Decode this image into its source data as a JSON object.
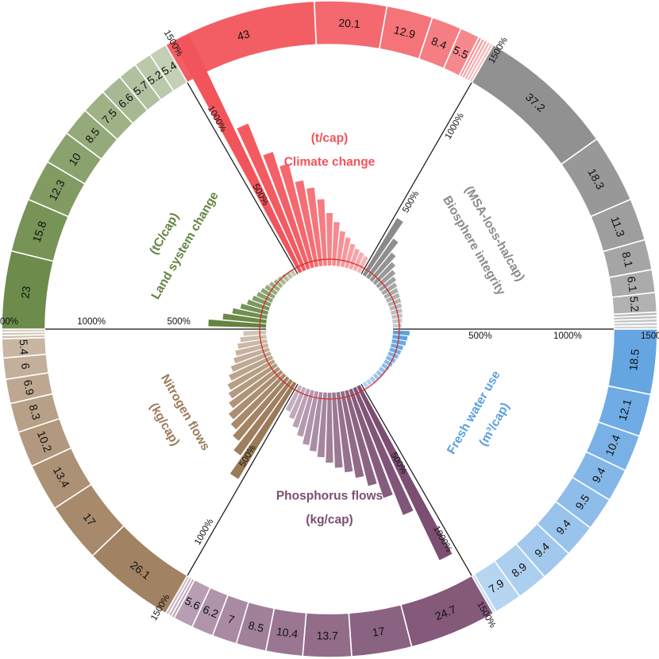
{
  "chart_data": {
    "type": "radial-bar",
    "tick_labels": [
      "500%",
      "1000%",
      "1500%"
    ],
    "tick_values": [
      500,
      1000,
      1500
    ],
    "categories": [
      {
        "key": "climate",
        "title_lines": [
          "Climate change",
          "(t/cap)"
        ],
        "color": "#f2545b",
        "center_angle": 0,
        "outer_values": [
          43,
          20.1,
          12.9,
          8.4,
          5.5
        ],
        "outer_unlabeled_count": 5,
        "bars_percent": [
          1500,
          900,
          700,
          610,
          500,
          450,
          380,
          300,
          250,
          200,
          170,
          140,
          120,
          110,
          100
        ]
      },
      {
        "key": "biosphere",
        "title_lines": [
          "Biosphere integrity",
          "(MSA-loss-ha/cap)"
        ],
        "color": "#8a8a8a",
        "center_angle": 60,
        "outer_values": [
          37.2,
          18.3,
          11.3,
          8.1,
          6.1,
          5.2
        ],
        "outer_unlabeled_count": 5,
        "bars_percent": [
          380,
          270,
          200,
          160,
          130,
          110,
          95,
          85,
          80,
          75,
          70,
          65,
          60,
          55,
          50
        ]
      },
      {
        "key": "water",
        "title_lines": [
          "Fresh water use",
          "(m³/cap)"
        ],
        "color": "#5b9fe0",
        "center_angle": 120,
        "outer_values": [
          18.5,
          12.1,
          10.4,
          9.4,
          9.5,
          9.4,
          9.4,
          8.9,
          7.9
        ],
        "outer_unlabeled_count": 1,
        "bars_percent": [
          95,
          85,
          80,
          70,
          65,
          60,
          55,
          50,
          45,
          40,
          40,
          35,
          35,
          30,
          30
        ]
      },
      {
        "key": "phosphorus",
        "title_lines": [
          "Phosphorus flows",
          "(kg/cap)"
        ],
        "color": "#7c4e72",
        "center_angle": 180,
        "outer_values": [
          24.7,
          17,
          13.7,
          10.4,
          8.5,
          7,
          6.2,
          5.6
        ],
        "outer_unlabeled_count": 3,
        "bars_percent": [
          1100,
          780,
          650,
          560,
          500,
          460,
          430,
          400,
          370,
          340,
          310,
          270,
          230,
          190,
          160
        ]
      },
      {
        "key": "nitrogen",
        "title_lines": [
          "Nitrogen flows",
          "(kg/cap)"
        ],
        "color": "#9b7a58",
        "center_angle": 240,
        "outer_values": [
          26.1,
          17,
          13.4,
          10.2,
          8.3,
          6.9,
          6,
          5.4
        ],
        "outer_unlabeled_count": 3,
        "bars_percent": [
          640,
          520,
          460,
          420,
          390,
          350,
          320,
          300,
          270,
          240,
          210,
          190,
          170,
          150,
          130
        ]
      },
      {
        "key": "land",
        "title_lines": [
          "Land system change",
          "(tC/cap)"
        ],
        "color": "#64843f",
        "center_angle": 300,
        "outer_values": [
          23,
          15.8,
          12.3,
          10,
          8.5,
          7.5,
          6.6,
          5.7,
          5.2,
          5.4
        ],
        "outer_unlabeled_count": 0,
        "bars_percent": [
          330,
          250,
          200,
          160,
          130,
          110,
          95,
          85,
          75,
          65,
          55,
          50,
          45,
          40,
          35
        ]
      }
    ]
  }
}
